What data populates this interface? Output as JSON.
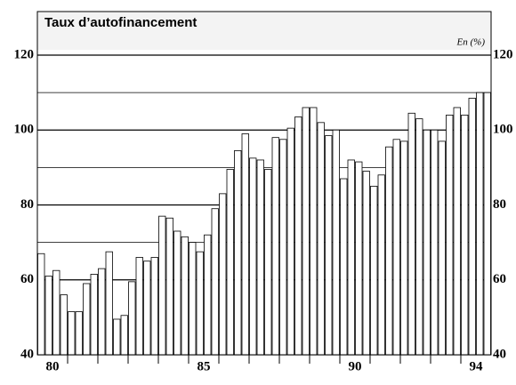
{
  "chart_data": {
    "type": "bar",
    "title": "Taux d’autofinancement",
    "unit_label": "En (%)",
    "x": [
      80,
      80.25,
      80.5,
      80.75,
      81,
      81.25,
      81.5,
      81.75,
      82,
      82.25,
      82.5,
      82.75,
      83,
      83.25,
      83.5,
      83.75,
      84,
      84.25,
      84.5,
      84.75,
      85,
      85.25,
      85.5,
      85.75,
      86,
      86.25,
      86.5,
      86.75,
      87,
      87.25,
      87.5,
      87.75,
      88,
      88.25,
      88.5,
      88.75,
      89,
      89.25,
      89.5,
      89.75,
      90,
      90.25,
      90.5,
      90.75,
      91,
      91.25,
      91.5,
      91.75,
      92,
      92.25,
      92.5,
      92.75,
      93,
      93.25,
      93.5,
      93.75,
      94,
      94.25,
      94.5,
      94.75
    ],
    "values": [
      67,
      61,
      62.5,
      56,
      51.5,
      51.5,
      59,
      61.5,
      63,
      67.5,
      49.5,
      50.5,
      59.5,
      66,
      65,
      66,
      77,
      76.5,
      73,
      71.5,
      70,
      67.5,
      72,
      79,
      83,
      89.5,
      94.5,
      99,
      92.5,
      92,
      89.5,
      98,
      97.5,
      100.5,
      103.5,
      106,
      106,
      102,
      98.5,
      100,
      87,
      92,
      91.5,
      89,
      85,
      88,
      95.5,
      97.5,
      97,
      104.5,
      103,
      100,
      100,
      97,
      104,
      106,
      104,
      108.5,
      110,
      110
    ],
    "color": "#ffffff",
    "xlim": [
      80,
      95
    ],
    "xticks": [
      {
        "value": 80.5,
        "label": "80"
      },
      {
        "value": 85.5,
        "label": "85"
      },
      {
        "value": 90.5,
        "label": "90"
      },
      {
        "value": 94.5,
        "label": "94"
      }
    ],
    "minor_xticks": [
      81,
      82,
      83,
      84,
      85,
      86,
      87,
      88,
      89,
      90,
      91,
      92,
      93,
      94
    ],
    "ylim": [
      40,
      120
    ],
    "yticks": [
      40,
      60,
      80,
      100,
      120
    ],
    "minor_grid": [
      70,
      90,
      110
    ],
    "grid": true
  }
}
